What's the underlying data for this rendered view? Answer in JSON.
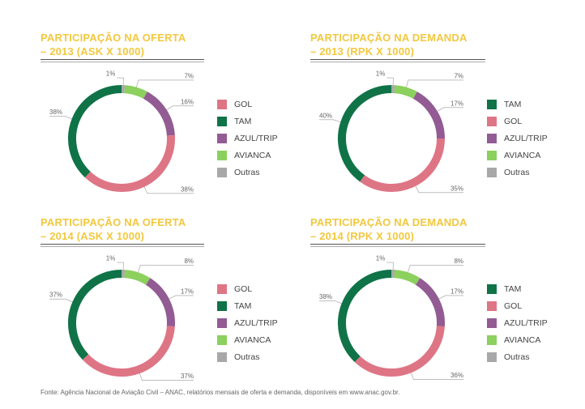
{
  "colors": {
    "GOL": "#de7585",
    "TAM": "#0f7347",
    "AZUL/TRIP": "#925b93",
    "AVIANCA": "#8cd05d",
    "Outras": "#a8a8a8"
  },
  "source": "Fonte: Agência Nacional de Aviação Civil – ANAC, relatórios mensais de oferta e demanda, disponíveis em www.anac.gov.br.",
  "chart_data": [
    {
      "type": "pie",
      "title_lines": [
        "PARTICIPAÇÃO NA OFERTA",
        "– 2013 (ASK X 1000)"
      ],
      "labels": [
        "Outras",
        "AVIANCA",
        "AZUL/TRIP",
        "GOL",
        "TAM"
      ],
      "value_labels": [
        "1%",
        "7%",
        "16%",
        "38%",
        "38%"
      ],
      "values": [
        1,
        7,
        16,
        38,
        38
      ],
      "legend": [
        "GOL",
        "TAM",
        "AZUL/TRIP",
        "AVIANCA",
        "Outras"
      ],
      "legend_placement": "right"
    },
    {
      "type": "pie",
      "title_lines": [
        "PARTICIPAÇÃO NA DEMANDA",
        "– 2013 (RPK X 1000)"
      ],
      "labels": [
        "Outras",
        "AVIANCA",
        "AZUL/TRIP",
        "GOL",
        "TAM"
      ],
      "value_labels": [
        "1%",
        "7%",
        "17%",
        "35%",
        "40%"
      ],
      "values": [
        1,
        7,
        17,
        35,
        40
      ],
      "legend": [
        "TAM",
        "GOL",
        "AZUL/TRIP",
        "AVIANCA",
        "Outras"
      ],
      "legend_placement": "right"
    },
    {
      "type": "pie",
      "title_lines": [
        "PARTICIPAÇÃO NA OFERTA",
        "– 2014 (ASK X 1000)"
      ],
      "labels": [
        "Outras",
        "AVIANCA",
        "AZUL/TRIP",
        "GOL",
        "TAM"
      ],
      "value_labels": [
        "1%",
        "8%",
        "17%",
        "37%",
        "37%"
      ],
      "values": [
        1,
        8,
        17,
        37,
        37
      ],
      "legend": [
        "GOL",
        "TAM",
        "AZUL/TRIP",
        "AVIANCA",
        "Outras"
      ],
      "legend_placement": "right"
    },
    {
      "type": "pie",
      "title_lines": [
        "PARTICIPAÇÃO NA DEMANDA",
        "– 2014 (RPK X 1000)"
      ],
      "labels": [
        "Outras",
        "AVIANCA",
        "AZUL/TRIP",
        "GOL",
        "TAM"
      ],
      "value_labels": [
        "1%",
        "8%",
        "17%",
        "36%",
        "38%"
      ],
      "values": [
        1,
        8,
        17,
        36,
        38
      ],
      "legend": [
        "TAM",
        "GOL",
        "AZUL/TRIP",
        "AVIANCA",
        "Outras"
      ],
      "legend_placement": "right"
    }
  ]
}
